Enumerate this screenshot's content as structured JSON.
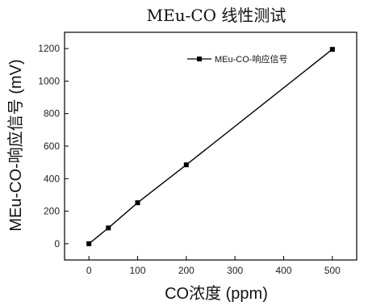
{
  "chart_data": {
    "type": "line",
    "title": "MEu-CO 线性测试",
    "xlabel": "CO浓度 (ppm)",
    "ylabel": "MEu-CO-响应信号 (mV)",
    "xlim": [
      -50,
      550
    ],
    "ylim": [
      -100,
      1300
    ],
    "x_ticks": [
      0,
      100,
      200,
      300,
      400,
      500
    ],
    "y_ticks": [
      0,
      200,
      400,
      600,
      800,
      1000,
      1200
    ],
    "grid": false,
    "legend_position": "top-right",
    "series": [
      {
        "name": "MEu-CO-响应信号",
        "marker": "square",
        "color": "#000000",
        "x": [
          0,
          40,
          100,
          200,
          500
        ],
        "y": [
          0,
          97,
          252,
          485,
          1195
        ]
      }
    ]
  }
}
